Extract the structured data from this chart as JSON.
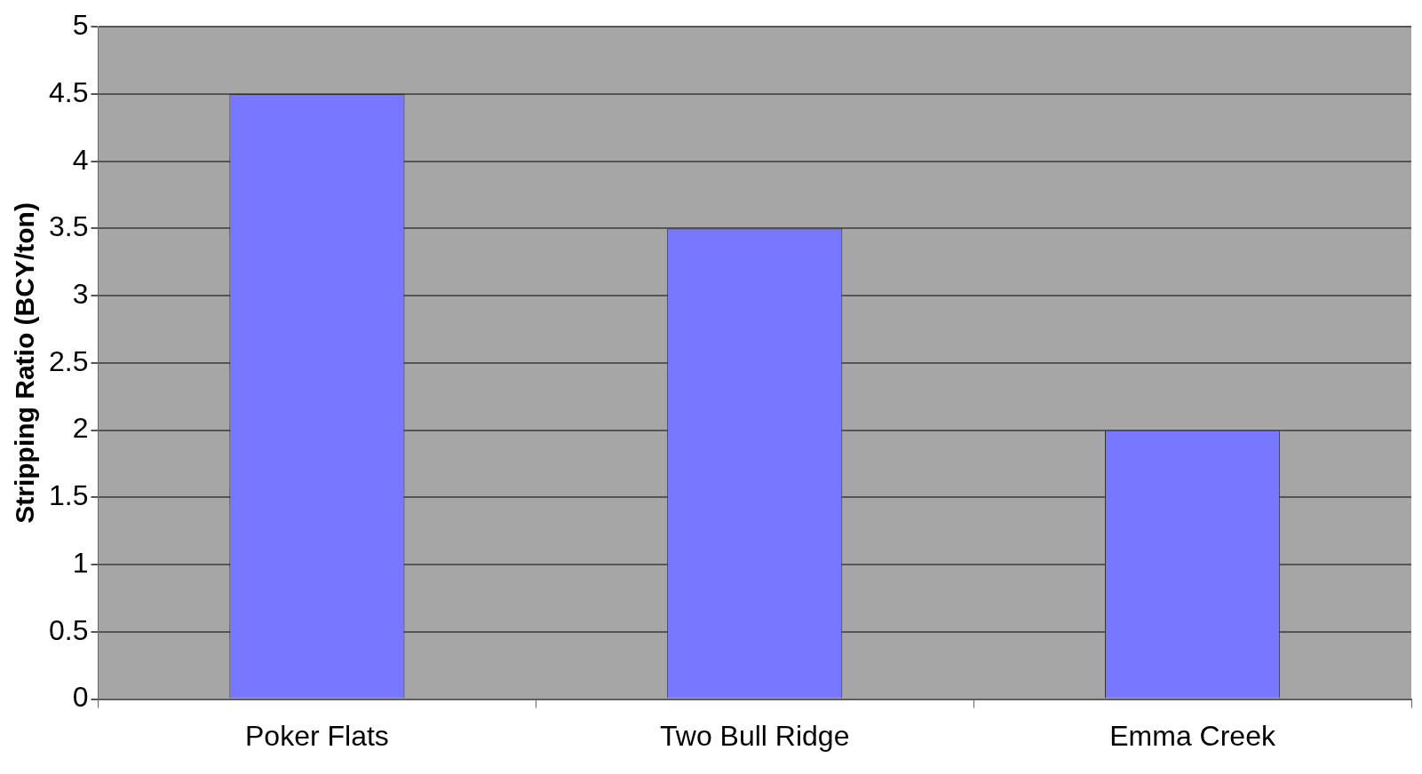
{
  "chart_data": {
    "type": "bar",
    "ylabel": "Stripping Ratio (BCY/ton)",
    "categories": [
      "Poker Flats",
      "Two Bull Ridge",
      "Emma Creek"
    ],
    "values": [
      4.5,
      3.5,
      2
    ],
    "color": "#7777ff",
    "ylim": [
      0,
      5
    ],
    "yticks": [
      0,
      0.5,
      1,
      1.5,
      2,
      2.5,
      3,
      3.5,
      4,
      4.5,
      5
    ],
    "grid": "y"
  }
}
